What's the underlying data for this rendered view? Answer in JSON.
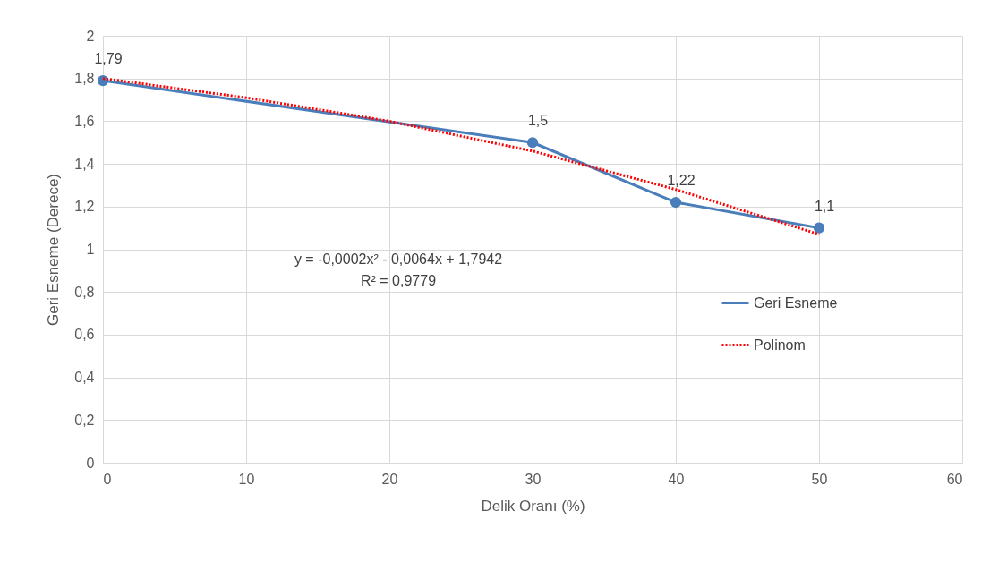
{
  "chart_data": {
    "type": "line",
    "xlabel": "Delik Oranı (%)",
    "ylabel": "Geri Esneme (Derece)",
    "xlim": [
      0,
      60
    ],
    "xticks": [
      0,
      10,
      20,
      30,
      40,
      50,
      60
    ],
    "ylim": [
      0,
      2
    ],
    "yticks": [
      0,
      {
        "value": 0.2,
        "label": "0,2"
      },
      {
        "value": 0.4,
        "label": "0,4"
      },
      {
        "value": 0.6,
        "label": "0,6"
      },
      {
        "value": 0.8,
        "label": "0,8"
      },
      1,
      {
        "value": 1.2,
        "label": "1,2"
      },
      {
        "value": 1.4,
        "label": "1,4"
      },
      {
        "value": 1.6,
        "label": "1,6"
      },
      {
        "value": 1.8,
        "label": "1,8"
      },
      2
    ],
    "grid": true,
    "legend": "right",
    "annotations": [
      "y = -0,0002x² - 0,0064x + 1,7942",
      "R² = 0,9779"
    ],
    "series": [
      {
        "name": "Geri Esneme",
        "color": "#4a7ebb",
        "marker": "circle",
        "line_style": "solid",
        "x": [
          0,
          30,
          40,
          50
        ],
        "values": [
          1.79,
          1.5,
          1.22,
          1.1
        ],
        "value_labels": [
          "1,79",
          "1,5",
          "1,22",
          "1,1"
        ]
      },
      {
        "name": "Polinom",
        "color": "#ff0000",
        "marker": "none",
        "line_style": "dotted",
        "x": [
          0,
          10,
          20,
          30,
          40,
          50
        ],
        "values": [
          1.8,
          1.71,
          1.6,
          1.46,
          1.28,
          1.07
        ]
      }
    ]
  }
}
